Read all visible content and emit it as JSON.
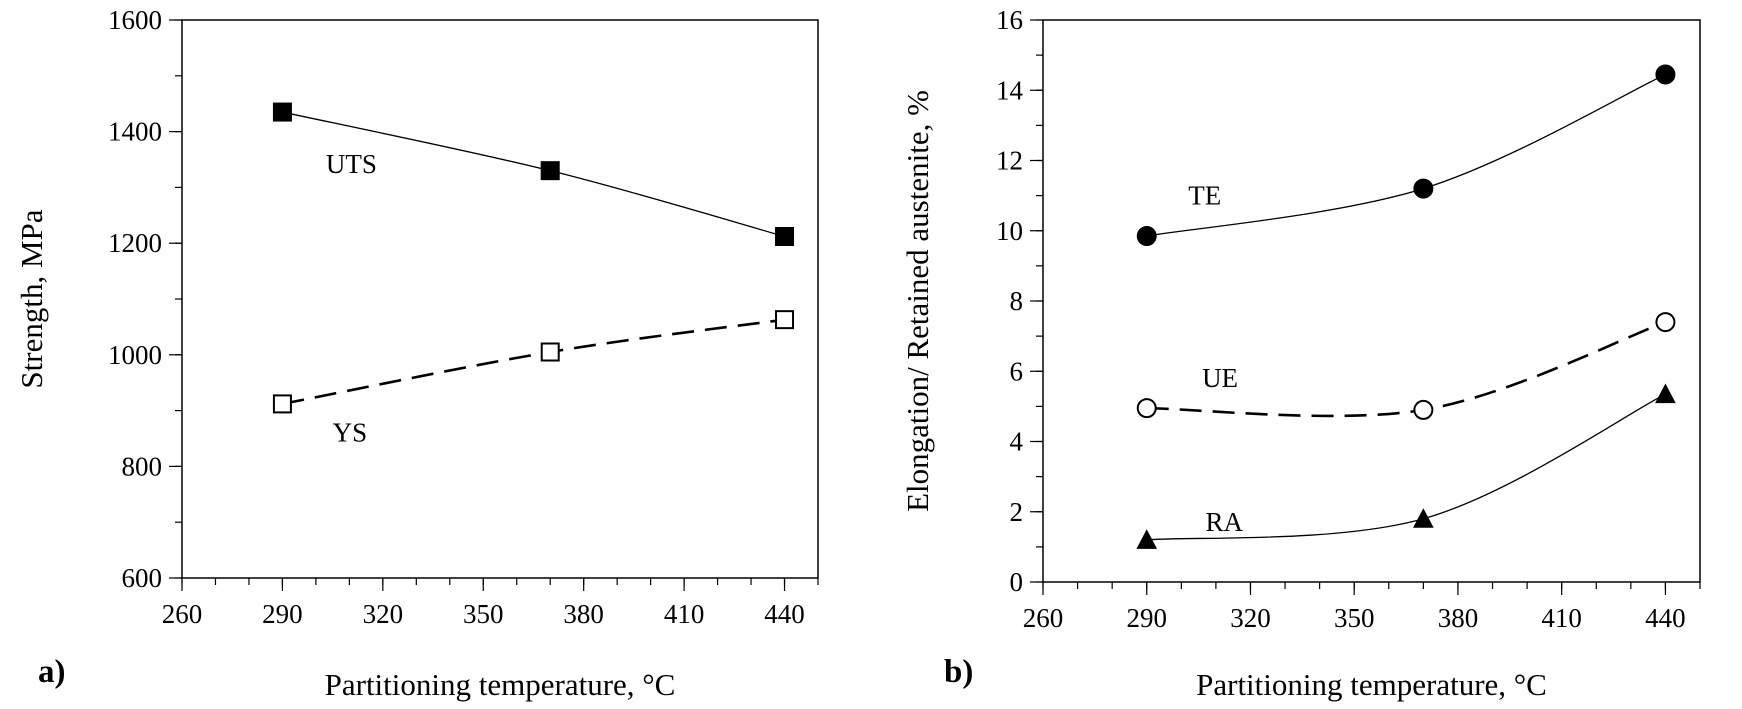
{
  "chart_data": [
    {
      "type": "line",
      "panel_label": "a)",
      "xlabel": "Partitioning temperature, °C",
      "ylabel": "Strength, MPa",
      "xlim": [
        260,
        450
      ],
      "ylim": [
        600,
        1600
      ],
      "xticks": [
        260,
        290,
        320,
        350,
        380,
        410,
        440
      ],
      "yticks": [
        600,
        800,
        1000,
        1200,
        1400,
        1600
      ],
      "x_minor_step": 10,
      "y_minor_step": 100,
      "grid": false,
      "series": [
        {
          "name": "UTS",
          "x": [
            290,
            370,
            440
          ],
          "values": [
            1435,
            1330,
            1212
          ],
          "marker": "square-filled",
          "line": "solid",
          "label_at": [
            303,
            1326
          ]
        },
        {
          "name": "YS",
          "x": [
            290,
            370,
            440
          ],
          "values": [
            912,
            1005,
            1063
          ],
          "marker": "square-open",
          "line": "dashed",
          "label_at": [
            305,
            845
          ]
        }
      ]
    },
    {
      "type": "line",
      "panel_label": "b)",
      "xlabel": "Partitioning temperature, °C",
      "ylabel": "Elongation/ Retained austenite, %",
      "xlim": [
        260,
        450
      ],
      "ylim": [
        0,
        16
      ],
      "xticks": [
        260,
        290,
        320,
        350,
        380,
        410,
        440
      ],
      "yticks": [
        0,
        2,
        4,
        6,
        8,
        10,
        12,
        14,
        16
      ],
      "x_minor_step": 10,
      "y_minor_step": 1,
      "grid": false,
      "series": [
        {
          "name": "TE",
          "x": [
            290,
            370,
            440
          ],
          "values": [
            9.85,
            11.2,
            14.45
          ],
          "marker": "circle-filled",
          "line": "solid",
          "label_at": [
            302,
            10.75
          ]
        },
        {
          "name": "UE",
          "x": [
            290,
            370,
            440
          ],
          "values": [
            4.95,
            4.9,
            7.4
          ],
          "marker": "circle-open",
          "line": "dashed",
          "label_at": [
            306,
            5.55
          ]
        },
        {
          "name": "RA",
          "x": [
            290,
            370,
            440
          ],
          "values": [
            1.2,
            1.8,
            5.35
          ],
          "marker": "triangle-filled",
          "line": "solid",
          "label_at": [
            307,
            1.45
          ]
        }
      ]
    }
  ]
}
